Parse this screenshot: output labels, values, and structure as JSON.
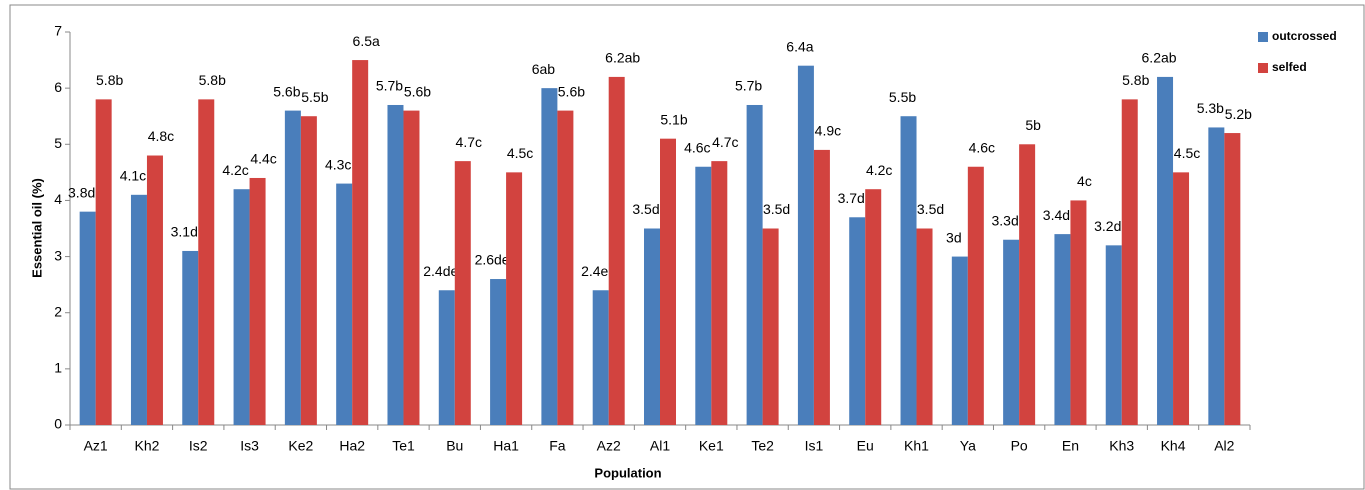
{
  "chart_data": {
    "type": "bar",
    "x_label": "Population",
    "y_label": "Essential oil (%)",
    "categories": [
      "Az1",
      "Kh2",
      "Is2",
      "Is3",
      "Ke2",
      "Ha2",
      "Te1",
      "Bu",
      "Ha1",
      "Fa",
      "Az2",
      "Al1",
      "Ke1",
      "Te2",
      "Is1",
      "Eu",
      "Kh1",
      "Ya",
      "Po",
      "En",
      "Kh3",
      "Kh4",
      "Al2"
    ],
    "series": [
      {
        "name": "outcrossed",
        "color": "#4a7ebb",
        "values": [
          3.8,
          4.1,
          3.1,
          4.2,
          5.6,
          4.3,
          5.7,
          2.4,
          2.6,
          6,
          2.4,
          3.5,
          4.6,
          5.7,
          6.4,
          3.7,
          5.5,
          3,
          3.3,
          3.4,
          3.2,
          6.2,
          5.3
        ],
        "value_labels": [
          "3.8d",
          "4.1c",
          "3.1d",
          "4.2c",
          "5.6b",
          "4.3c",
          "5.7b",
          "2.4de",
          "2.6de",
          "6ab",
          "2.4e",
          "3.5d",
          "4.6c",
          "5.7b",
          "6.4a",
          "3.7d",
          "5.5b",
          "3d",
          "3.3d",
          "3.4d",
          "3.2d",
          "6.2ab",
          "5.3b"
        ]
      },
      {
        "name": "selfed",
        "color": "#d2433f",
        "values": [
          5.8,
          4.8,
          5.8,
          4.4,
          5.5,
          6.5,
          5.6,
          4.7,
          4.5,
          5.6,
          6.2,
          5.1,
          4.7,
          3.5,
          4.9,
          4.2,
          3.5,
          4.6,
          5,
          4,
          5.8,
          4.5,
          5.2
        ],
        "value_labels": [
          "5.8b",
          "4.8c",
          "5.8b",
          "4.4c",
          "5.5b",
          "6.5a",
          "5.6b",
          "4.7c",
          "4.5c",
          "5.6b",
          "6.2ab",
          "5.1b",
          "4.7c",
          "3.5d",
          "4.9c",
          "4.2c",
          "3.5d",
          "4.6c",
          "5b",
          "4c",
          "5.8b",
          "4.5c",
          "5.2b"
        ]
      }
    ],
    "ylim": [
      0,
      7
    ],
    "yticks": [
      0,
      1,
      2,
      3,
      4,
      5,
      6,
      7
    ],
    "grid": false,
    "legend": "top-right"
  }
}
